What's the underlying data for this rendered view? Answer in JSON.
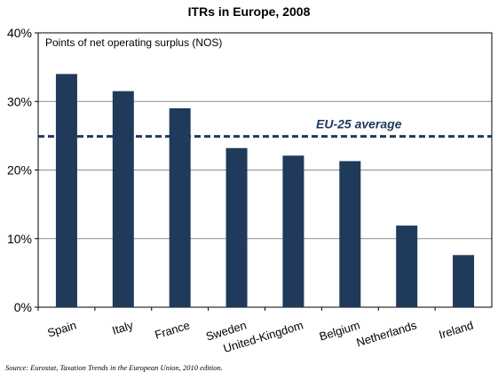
{
  "chart_data": {
    "type": "bar",
    "title": "ITRs in Europe, 2008",
    "subtitle": "Points of net operating surplus (NOS)",
    "categories": [
      "Spain",
      "Italy",
      "France",
      "Sweden",
      "United-Kingdom",
      "Belgium",
      "Netherlands",
      "Ireland"
    ],
    "values": [
      34.0,
      31.5,
      29.0,
      23.2,
      22.1,
      21.3,
      11.9,
      7.6
    ],
    "ylim": [
      0,
      40
    ],
    "yticks": [
      "0%",
      "10%",
      "20%",
      "30%",
      "40%"
    ],
    "ytick_values": [
      0,
      10,
      20,
      30,
      40
    ],
    "xlabel": "",
    "ylabel": "",
    "reference_line": {
      "label": "EU-25 average",
      "value": 24.9,
      "style": "dashed"
    },
    "bar_color": "#1f3a5a",
    "grid": true,
    "source": "Source: Eurostat, Taxation Trends in the European Union, 2010 edition."
  }
}
